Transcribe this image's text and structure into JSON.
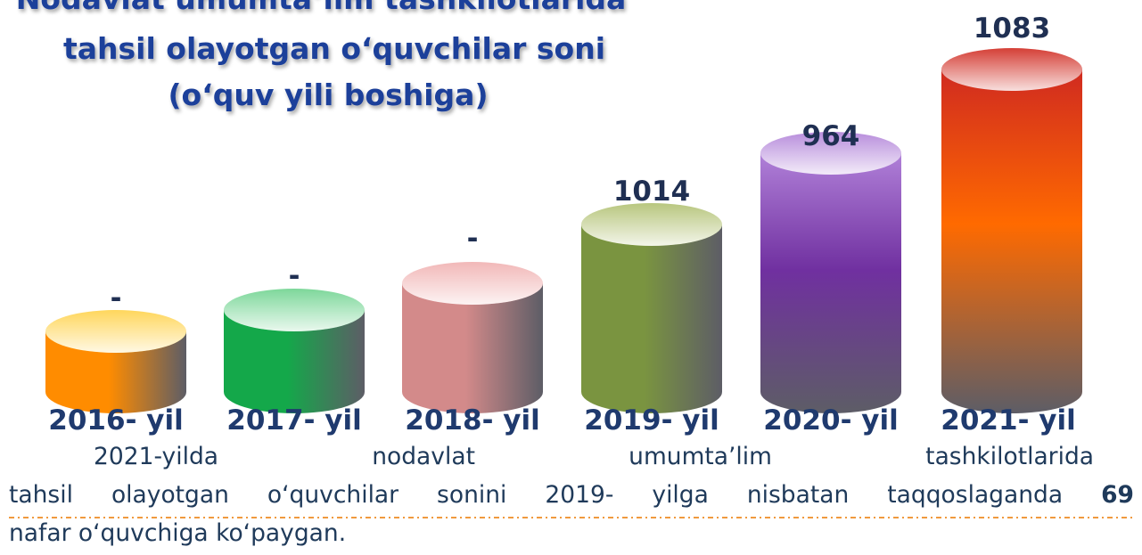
{
  "title": {
    "lines": [
      "Nodavlat umumta’lim tashkilotlarida",
      "tahsil olayotgan o‘quvchilar soni",
      "(o‘quv yili boshiga)"
    ]
  },
  "columns": [
    {
      "year": "2016- yil",
      "value": "-"
    },
    {
      "year": "2017- yil",
      "value": "-"
    },
    {
      "year": "2018- yil",
      "value": "-"
    },
    {
      "year": "2019- yil",
      "value": 1014
    },
    {
      "year": "2020- yil",
      "value": 964
    },
    {
      "year": "2021- yil",
      "value": 1083
    }
  ],
  "paragraph": {
    "line1": "2021-yilda nodavlat umumta’lim tashkilotlarida",
    "line2": "tahsil olayotgan o‘quvchilar sonini 2019- yilga nisbatan taqqoslaganda",
    "line2_bold": "69",
    "line3": "nafar o‘quvchiga ko‘paygan."
  }
}
